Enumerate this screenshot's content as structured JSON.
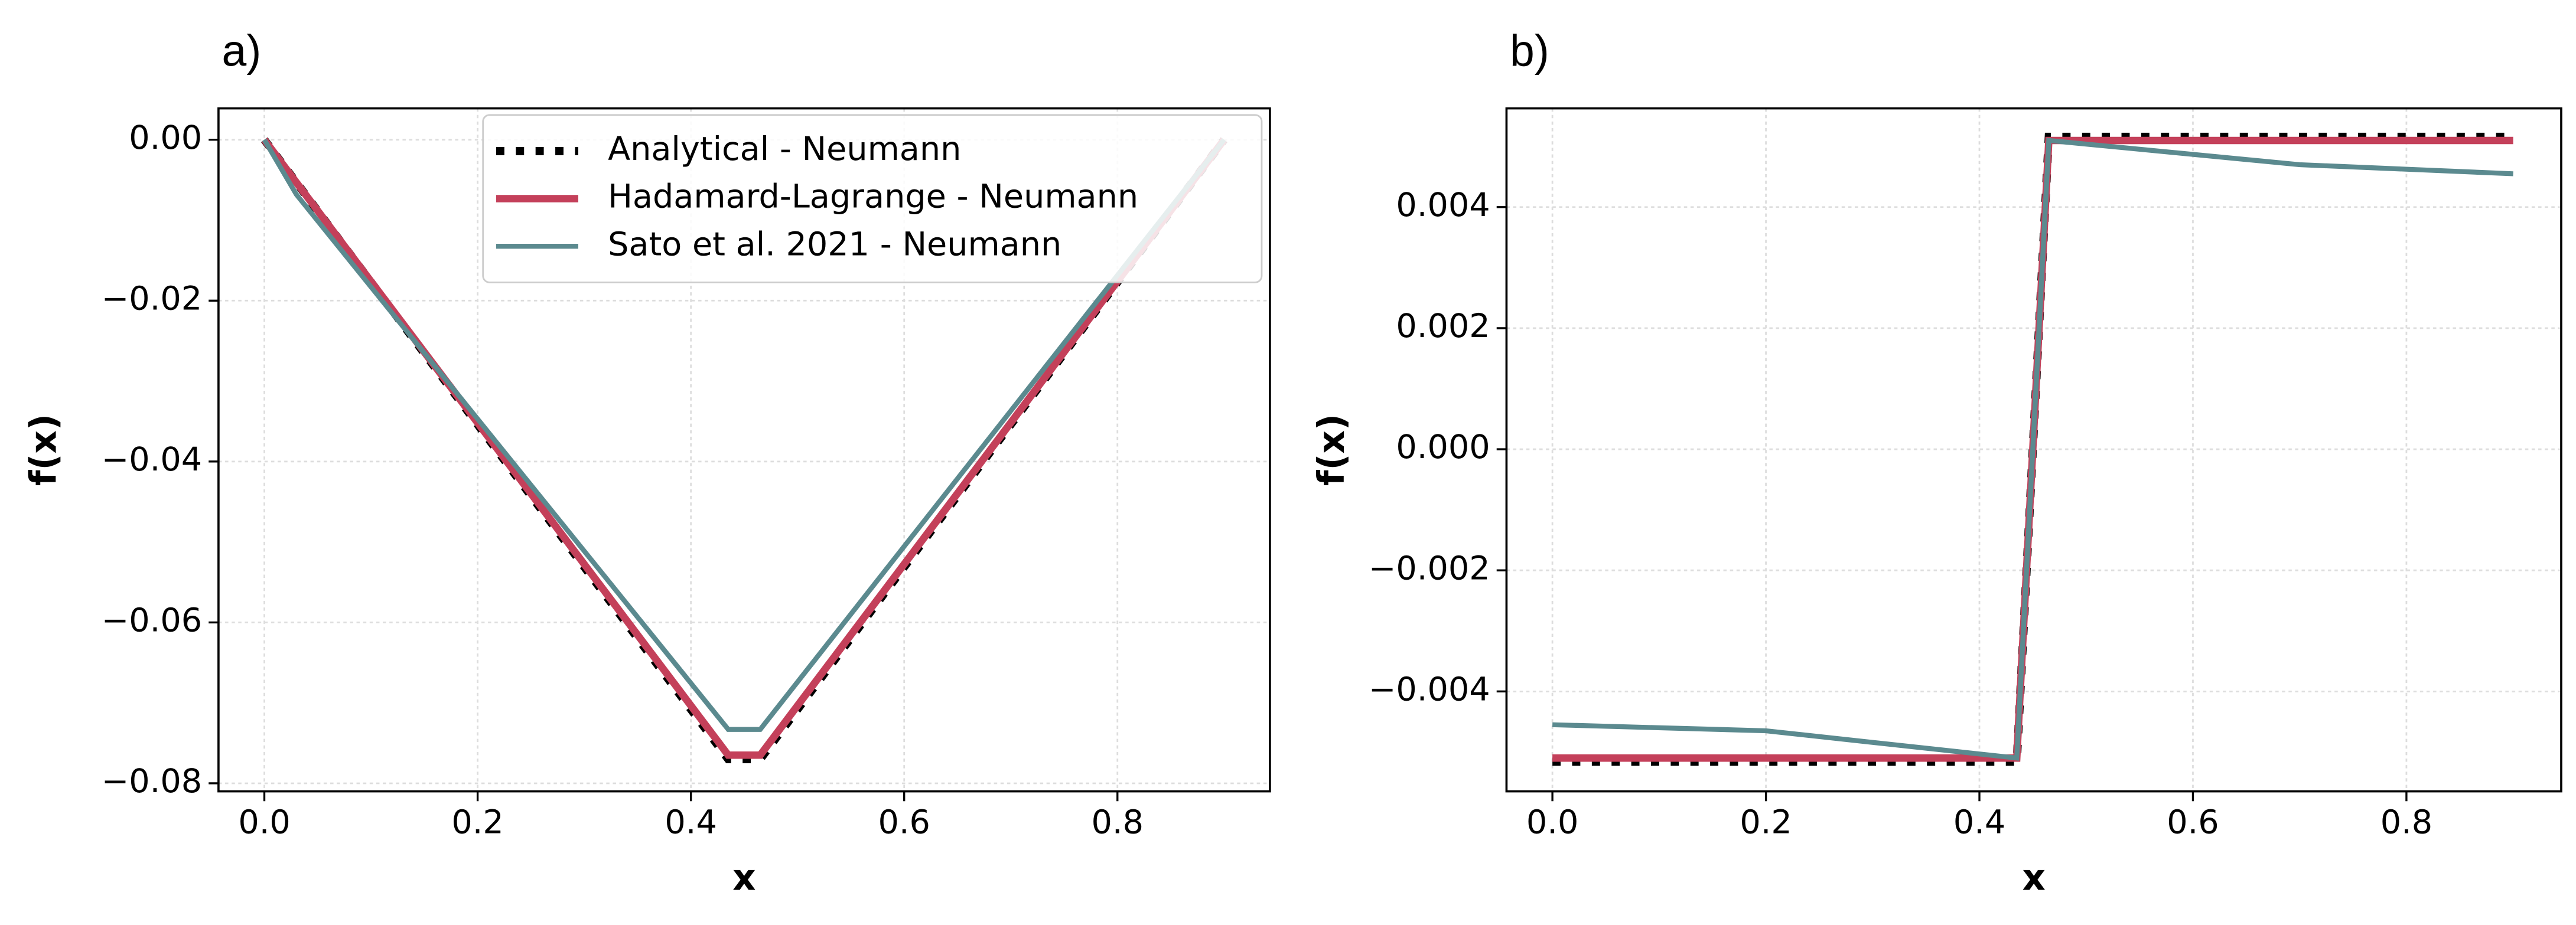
{
  "chart_data": [
    {
      "type": "line",
      "title": "a)",
      "xlabel": "x",
      "ylabel": "f(x)",
      "x": [
        0,
        0.03,
        0.435,
        0.465,
        0.9
      ],
      "series": [
        {
          "name": "Analytical - Neumann",
          "color": "#000000",
          "style": "dotted",
          "values": [
            0,
            -0.0053,
            -0.077,
            -0.077,
            0
          ]
        },
        {
          "name": "Hadamard-Lagrange - Neumann",
          "color": "#c4405a",
          "style": "solid",
          "values": [
            0,
            -0.0053,
            -0.0765,
            -0.0765,
            0
          ]
        },
        {
          "name": "Sato et al. 2021 - Neumann",
          "color": "#5b8a8f",
          "style": "solid",
          "values": [
            0,
            -0.0068,
            -0.0733,
            -0.0733,
            0
          ]
        }
      ],
      "xlim": [
        -0.043,
        0.943
      ],
      "ylim": [
        -0.081,
        0.0039
      ],
      "xticks": [
        {
          "value": 0,
          "label": "0.0"
        },
        0.2,
        0.4,
        0.6,
        0.8
      ],
      "yticks": [
        {
          "value": 0,
          "label": "0.00"
        },
        {
          "value": -0.02,
          "label": "−0.02"
        },
        {
          "value": -0.04,
          "label": "−0.04"
        },
        {
          "value": -0.06,
          "label": "−0.06"
        },
        {
          "value": -0.08,
          "label": "−0.08"
        }
      ],
      "grid": true,
      "legend": "upper right"
    },
    {
      "type": "line",
      "title": "b)",
      "xlabel": "x",
      "ylabel": "f(x)",
      "x": [
        0,
        0.2,
        0.435,
        0.465,
        0.7,
        0.9
      ],
      "series": [
        {
          "name": "Analytical - Neumann",
          "color": "#000000",
          "style": "dotted",
          "values": [
            -0.00516,
            -0.00516,
            -0.00516,
            0.00516,
            0.00516,
            0.00516
          ]
        },
        {
          "name": "Hadamard-Lagrange - Neumann",
          "color": "#c4405a",
          "style": "solid",
          "values": [
            -0.0051,
            -0.0051,
            -0.0051,
            0.0051,
            0.0051,
            0.0051
          ]
        },
        {
          "name": "Sato et al. 2021 - Neumann",
          "color": "#5b8a8f",
          "style": "solid",
          "values": [
            -0.00455,
            -0.00465,
            -0.0051,
            0.0051,
            0.0047,
            0.00455
          ]
        }
      ],
      "xlim": [
        -0.043,
        0.945
      ],
      "ylim": [
        -0.00565,
        0.00563
      ],
      "xticks": [
        {
          "value": 0,
          "label": "0.0"
        },
        0.2,
        0.4,
        0.6,
        0.8
      ],
      "yticks": [
        {
          "value": -0.004,
          "label": "−0.004"
        },
        {
          "value": -0.002,
          "label": "−0.002"
        },
        {
          "value": 0,
          "label": "0.000"
        },
        0.002,
        0.004
      ],
      "grid": true
    }
  ]
}
